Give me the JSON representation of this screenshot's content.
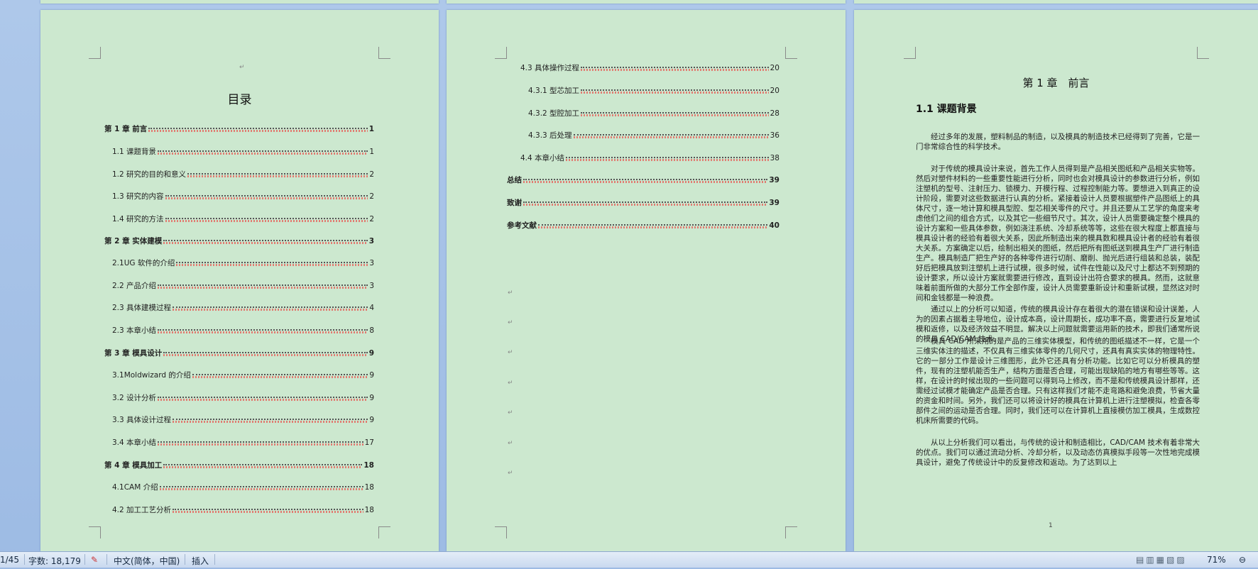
{
  "toc": {
    "title": "目录",
    "entries": [
      {
        "title": "第 1 章  前言",
        "page": 1,
        "level": 1
      },
      {
        "title": "1.1 课题背景",
        "page": 1,
        "level": 2
      },
      {
        "title": "1.2 研究的目的和意义",
        "page": 2,
        "level": 2
      },
      {
        "title": "1.3 研究的内容",
        "page": 2,
        "level": 2
      },
      {
        "title": "1.4 研究的方法",
        "page": 2,
        "level": 2
      },
      {
        "title": "第 2 章 实体建模",
        "page": 3,
        "level": 1
      },
      {
        "title": "2.1UG 软件的介绍",
        "page": 3,
        "level": 2
      },
      {
        "title": "2.2 产品介绍",
        "page": 3,
        "level": 2
      },
      {
        "title": "2.3 具体建模过程",
        "page": 4,
        "level": 2
      },
      {
        "title": "2.3 本章小结",
        "page": 8,
        "level": 2
      },
      {
        "title": "第 3 章 模具设计",
        "page": 9,
        "level": 1
      },
      {
        "title": "3.1Moldwizard 的介绍",
        "page": 9,
        "level": 2
      },
      {
        "title": "3.2 设计分析",
        "page": 9,
        "level": 2
      },
      {
        "title": "3.3 具体设计过程",
        "page": 9,
        "level": 2
      },
      {
        "title": "3.4 本章小结",
        "page": 17,
        "level": 2
      },
      {
        "title": "第 4 章 模具加工",
        "page": 18,
        "level": 1
      },
      {
        "title": "4.1CAM 介绍",
        "page": 18,
        "level": 2
      },
      {
        "title": "4.2 加工工艺分析",
        "page": 18,
        "level": 2
      },
      {
        "title": "4.3 具体操作过程",
        "page": 20,
        "level": 2
      },
      {
        "title": "4.3.1 型芯加工",
        "page": 20,
        "level": 3
      },
      {
        "title": "4.3.2 型腔加工",
        "page": 28,
        "level": 3
      },
      {
        "title": "4.3.3 后处理",
        "page": 36,
        "level": 3
      },
      {
        "title": "4.4 本章小结",
        "page": 38,
        "level": 2
      },
      {
        "title": "总结",
        "page": 39,
        "level": 1
      },
      {
        "title": "致谢",
        "page": 39,
        "level": 1
      },
      {
        "title": "参考文献",
        "page": 40,
        "level": 1
      }
    ]
  },
  "chapter": {
    "title": "第 1 章　前言",
    "section": "1.1 课题背景",
    "paragraphs": [
      "经过多年的发展，塑料制品的制造，以及模具的制造技术已经得到了完善，它是一门非常综合性的科学技术。",
      "对于传统的模具设计来说，首先工作人员得到是产品相关图纸和产品相关实物等。然后对塑件材料的一些重要性能进行分析，同时也会对模具设计的参数进行分析，例如注塑机的型号、注射压力、锁模力、开模行程、过程控制能力等。要想进入到真正的设计阶段，需要对这些数据进行认真的分析。紧接着设计人员要根据塑件产品图纸上的具体尺寸，逐一地计算和模具型腔、型芯相关零件的尺寸。并且还要从工艺学的角度来考虑他们之间的组合方式，以及其它一些细节尺寸。其次，设计人员需要确定整个模具的设计方案和一些具体参数，例如浇注系统、冷却系统等等，这些在很大程度上都直接与模具设计者的经验有着很大关系，因此所制造出来的模具数和模具设计者的经验有着很大关系。方案确定以后，绘制出相关的图纸，然后把所有图纸送到模具生产厂进行制造生产。模具制造厂把生产好的各种零件进行切削、磨削、抛光后进行组装和总装，装配好后把模具放到注塑机上进行试模，很多时候，试件在性能以及尺寸上都达不到预期的设计要求，所以设计方案就需要进行修改，直到设计出符合要求的模具。然而，这就意味着前面所做的大部分工作全部作废，设计人员需要重新设计和重新试模，显然这对时间和金钱都是一种浪费。",
      "通过以上的分析可以知道，传统的模具设计存在着很大的潜在错误和设计误差，人为的因素占据着主导地位，设计成本高，设计周期长，成功率不高，需要进行反复地试模和返修，以及经济效益不明显。解决以上问题就需要运用新的技术，即我们通常所说的模具 CAD/CAM 技术。",
      "模具 CAD 所采用的是产品的三维实体模型，和传统的图纸描述不一样，它是一个三维实体注的描述，不仅具有三维实体零件的几何尺寸，还具有真实实体的物理特性。它的一部分工作是设计三维图形，此外它还具有分析功能。比如它可以分析模具的塑件，现有的注塑机能否生产，结构方面是否合理，可能出现缺陷的地方有哪些等等。这样，在设计的时候出现的一些问题可以得到马上修改，而不是和传统模具设计那样，还需经过试模才能确定产品是否合理。只有这样我们才能不走弯路和避免浪费，节省大量的资金和时间。另外，我们还可以将设计好的模具在计算机上进行注塑模拟，检查各零部件之间的运动是否合理。同时，我们还可以在计算机上直接模仿加工模具，生成数控机床所需要的代码。",
      "从以上分析我们可以看出，与传统的设计和制造相比，CAD/CAM 技术有着非常大的优点。我们可以通过流动分析、冷却分析，以及动态仿真模拟手段等一次性地完成模具设计，避免了传统设计中的反复修改和返动。为了达到以上"
    ],
    "page_number": "1"
  },
  "status": {
    "page": "1/45",
    "words": "字数: 18,179",
    "language": "中文(简体，中国)",
    "mode": "插入",
    "zoom": "71%"
  }
}
